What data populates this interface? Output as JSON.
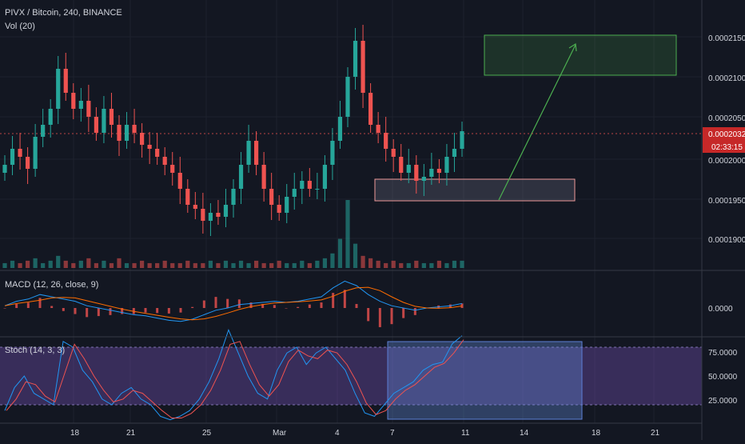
{
  "header": {
    "symbol_line": "PIVX / Bitcoin, 240, BINANCE",
    "volume_label": "Vol (20)"
  },
  "macd": {
    "label": "MACD (12, 26, close, 9)"
  },
  "stoch": {
    "label": "Stoch (14, 3, 3)"
  },
  "price_axis": {
    "ticks": [
      "0.0002150",
      "0.0002100",
      "0.0002050",
      "0.0002000",
      "0.0001950",
      "0.0001900"
    ],
    "current_price": "0.0002032",
    "countdown": "02:33:15"
  },
  "macd_axis": {
    "ticks": [
      "0.0000"
    ]
  },
  "stoch_axis": {
    "ticks": [
      "75.0000",
      "50.0000",
      "25.0000"
    ]
  },
  "time_axis": {
    "ticks": [
      "18",
      "21",
      "25",
      "Mar",
      "4",
      "7",
      "11",
      "14",
      "18",
      "21"
    ]
  },
  "colors": {
    "background": "#131722",
    "grid": "#1e222d",
    "text": "#d1d4dc",
    "bull": "#26a69a",
    "bear": "#ef5350",
    "macd_line": "#2196f3",
    "signal_line": "#ff6d00",
    "stoch_fill": "#7e57c2",
    "price_badge": "#c62828"
  },
  "chart_data": {
    "type": "candlestick",
    "series": [
      {
        "name": "PIVX / Bitcoin",
        "values": [
          0.000199,
          0.000201,
          0.0002,
          0.0001985,
          0.0002025,
          0.000204,
          0.000206,
          0.000211,
          0.000208,
          0.000206,
          0.000207,
          0.000205,
          0.000203,
          0.000206,
          0.000204,
          0.000202,
          0.000204,
          0.000203,
          0.0002015,
          0.000201,
          0.0002,
          0.000199,
          0.000198,
          0.000196,
          0.000194,
          0.0001935,
          0.000192,
          0.000193,
          0.0001925,
          0.000194,
          0.000196,
          0.000199,
          0.000202,
          0.000199,
          0.000196,
          0.000194,
          0.000193,
          0.000195,
          0.000196,
          0.000197,
          0.000196,
          0.000196,
          0.000199,
          0.000202,
          0.000205,
          0.00021,
          0.0002145,
          0.000208,
          0.000204,
          0.000203,
          0.000201,
          0.0002,
          0.000198,
          0.000199,
          0.000197,
          0.0001975,
          0.0001985,
          0.000198,
          0.0002,
          0.000201,
          0.0002032
        ]
      },
      {
        "name": "Vol (20)",
        "values": [
          2,
          3,
          2,
          3,
          4,
          2,
          3,
          5,
          3,
          2,
          3,
          4,
          2,
          3,
          2,
          4,
          2,
          2,
          3,
          2,
          2,
          3,
          2,
          2,
          3,
          2,
          2,
          3,
          2,
          3,
          2,
          3,
          2,
          3,
          2,
          2,
          3,
          2,
          2,
          3,
          2,
          3,
          4,
          6,
          12,
          28,
          10,
          5,
          4,
          3,
          2,
          3,
          2,
          2,
          3,
          2,
          2,
          3,
          2,
          3,
          3
        ]
      },
      {
        "name": "MACD",
        "values": [
          0.1,
          0.3,
          0.4,
          0.6,
          0.5,
          0.4,
          0.3,
          0.1,
          0.0,
          -0.1,
          -0.2,
          -0.3,
          -0.35,
          -0.45,
          -0.55,
          -0.6,
          -0.5,
          -0.3,
          -0.1,
          0.0,
          0.15,
          0.2,
          0.25,
          0.3,
          0.25,
          0.3,
          0.4,
          0.5,
          0.9,
          1.2,
          1.0,
          0.6,
          0.3,
          0.1,
          0.0,
          -0.1,
          0.0,
          0.05,
          0.1,
          0.2
        ]
      },
      {
        "name": "Stoch",
        "values": [
          20,
          40,
          50,
          35,
          30,
          25,
          80,
          75,
          55,
          45,
          30,
          25,
          35,
          40,
          30,
          25,
          15,
          12,
          15,
          20,
          30,
          45,
          65,
          90,
          70,
          50,
          35,
          30,
          55,
          70,
          75,
          60,
          70,
          75,
          65,
          55,
          35,
          18,
          15,
          25,
          35,
          40,
          45,
          55,
          60,
          62,
          78,
          85
        ]
      }
    ],
    "annotations": [
      "target box with arrow",
      "support box"
    ]
  }
}
